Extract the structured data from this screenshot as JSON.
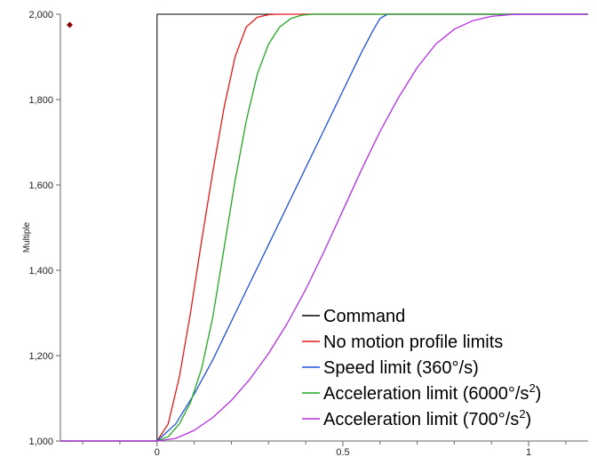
{
  "chart_data": {
    "type": "line",
    "title": "",
    "xlabel": "",
    "ylabel": "Multiple",
    "xlim": [
      -0.26,
      1.16
    ],
    "ylim": [
      1000,
      2000
    ],
    "x_ticks": [
      0,
      0.5,
      1
    ],
    "x_tick_labels": [
      "0",
      "0.5",
      "1"
    ],
    "y_ticks": [
      1000,
      1200,
      1400,
      1600,
      1800,
      2000
    ],
    "y_tick_labels": [
      "1,000",
      "1,200",
      "1,400",
      "1,600",
      "1,800",
      "2,000"
    ],
    "grid": false,
    "legend_position": "bottom-right",
    "series": [
      {
        "name": "Command",
        "color": "#000000",
        "x": [
          -0.26,
          0,
          0,
          1.16
        ],
        "y": [
          1000,
          1000,
          2000,
          2000
        ]
      },
      {
        "name": "No motion profile limits",
        "color": "#e41a1a",
        "x": [
          -0.26,
          0,
          0.03,
          0.06,
          0.09,
          0.12,
          0.15,
          0.18,
          0.21,
          0.24,
          0.27,
          0.3,
          0.33,
          0.36,
          1.16
        ],
        "y": [
          1000,
          1000,
          1040,
          1150,
          1300,
          1470,
          1630,
          1780,
          1900,
          1970,
          1993,
          1999,
          2000,
          2000,
          2000
        ]
      },
      {
        "name": "Speed limit (360°/s)",
        "color": "#1f4fe0",
        "x": [
          -0.26,
          0,
          0.05,
          0.1,
          0.15,
          0.2,
          0.25,
          0.3,
          0.35,
          0.4,
          0.45,
          0.5,
          0.55,
          0.58,
          0.6,
          0.62,
          1.16
        ],
        "y": [
          1000,
          1000,
          1040,
          1110,
          1190,
          1280,
          1370,
          1460,
          1550,
          1640,
          1730,
          1820,
          1910,
          1960,
          1990,
          2000,
          2000
        ]
      },
      {
        "name": "Acceleration limit (6000°/s²)",
        "color": "#22a822",
        "x": [
          -0.26,
          0,
          0.03,
          0.06,
          0.09,
          0.12,
          0.15,
          0.18,
          0.21,
          0.24,
          0.27,
          0.3,
          0.33,
          0.36,
          0.39,
          0.42,
          0.45,
          1.16
        ],
        "y": [
          1000,
          1000,
          1010,
          1040,
          1090,
          1170,
          1290,
          1450,
          1610,
          1750,
          1860,
          1930,
          1970,
          1990,
          1998,
          2000,
          2000,
          2000
        ]
      },
      {
        "name": "Acceleration limit (700°/s²)",
        "color": "#b42ee6",
        "x": [
          -0.26,
          0,
          0.05,
          0.1,
          0.15,
          0.2,
          0.25,
          0.3,
          0.35,
          0.4,
          0.45,
          0.5,
          0.55,
          0.6,
          0.65,
          0.7,
          0.75,
          0.8,
          0.85,
          0.9,
          0.95,
          1.0,
          1.05,
          1.1,
          1.16
        ],
        "y": [
          1000,
          1000,
          1006,
          1025,
          1055,
          1095,
          1145,
          1205,
          1275,
          1355,
          1445,
          1540,
          1635,
          1725,
          1805,
          1875,
          1930,
          1965,
          1985,
          1995,
          1999,
          2000,
          2000,
          2000,
          2000
        ]
      }
    ],
    "annotations": [
      {
        "type": "marker",
        "shape": "diamond",
        "color": "#8b0000",
        "x": -0.235,
        "y": 1975
      }
    ]
  }
}
